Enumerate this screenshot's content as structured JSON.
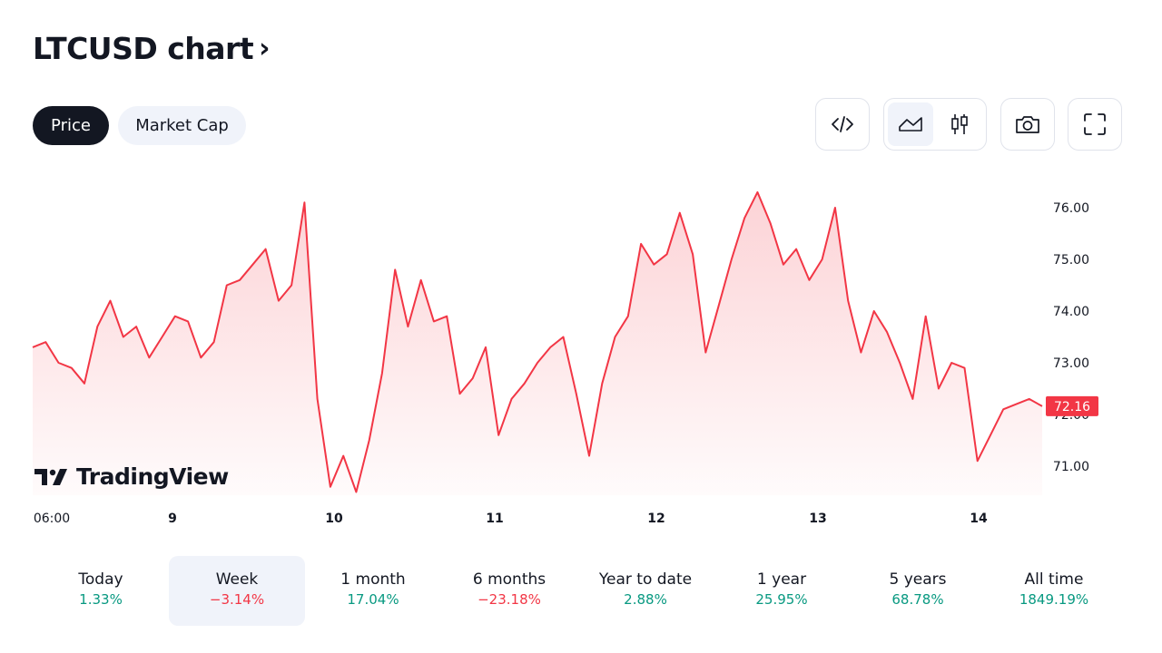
{
  "header": {
    "title": "LTCUSD chart",
    "chevron": "›"
  },
  "tabs": [
    {
      "label": "Price",
      "active": true
    },
    {
      "label": "Market Cap",
      "active": false
    }
  ],
  "toolbar": {
    "icons": [
      "embed-code-icon",
      "area-chart-icon",
      "candles-icon",
      "camera-icon",
      "fullscreen-icon"
    ],
    "active_style": "area"
  },
  "colors": {
    "line": "#f23645",
    "up": "#089981",
    "down": "#f23645",
    "dark": "#131722"
  },
  "watermark": "TradingView",
  "chart_data": {
    "type": "area",
    "title": "",
    "x_tick_labels": [
      "06:00",
      "9",
      "10",
      "11",
      "12",
      "13",
      "14"
    ],
    "y_tick_labels": [
      "76.00",
      "75.00",
      "74.00",
      "73.00",
      "72.00",
      "71.00"
    ],
    "ylim": [
      70.4,
      76.7
    ],
    "last_price_label": "72.16",
    "series": [
      {
        "values": [
          73.3,
          73.4,
          73.0,
          72.9,
          72.6,
          73.7,
          74.2,
          73.5,
          73.7,
          73.1,
          73.5,
          73.9,
          73.8,
          73.1,
          73.4,
          74.5,
          74.6,
          74.9,
          75.2,
          74.2,
          74.5,
          76.1,
          72.3,
          70.6,
          71.2,
          70.5,
          71.5,
          72.8,
          74.8,
          73.7,
          74.6,
          73.8,
          73.9,
          72.4,
          72.7,
          73.3,
          71.6,
          72.3,
          72.6,
          73.0,
          73.3,
          73.5,
          72.4,
          71.2,
          72.6,
          73.5,
          73.9,
          75.3,
          74.9,
          75.1,
          75.9,
          75.1,
          73.2,
          74.1,
          75.0,
          75.8,
          76.3,
          75.7,
          74.9,
          75.2,
          74.6,
          75.0,
          76.0,
          74.2,
          73.2,
          74.0,
          73.6,
          73.0,
          72.3,
          73.9,
          72.5,
          73.0,
          72.9,
          71.1,
          71.6,
          72.1,
          72.2,
          72.3,
          72.16
        ]
      }
    ]
  },
  "periods": [
    {
      "label": "Today",
      "value": "1.33%",
      "dir": "up"
    },
    {
      "label": "Week",
      "value": "−3.14%",
      "dir": "down",
      "selected": true
    },
    {
      "label": "1 month",
      "value": "17.04%",
      "dir": "up"
    },
    {
      "label": "6 months",
      "value": "−23.18%",
      "dir": "down"
    },
    {
      "label": "Year to date",
      "value": "2.88%",
      "dir": "up"
    },
    {
      "label": "1 year",
      "value": "25.95%",
      "dir": "up"
    },
    {
      "label": "5 years",
      "value": "68.78%",
      "dir": "up"
    },
    {
      "label": "All time",
      "value": "1849.19%",
      "dir": "up"
    }
  ]
}
